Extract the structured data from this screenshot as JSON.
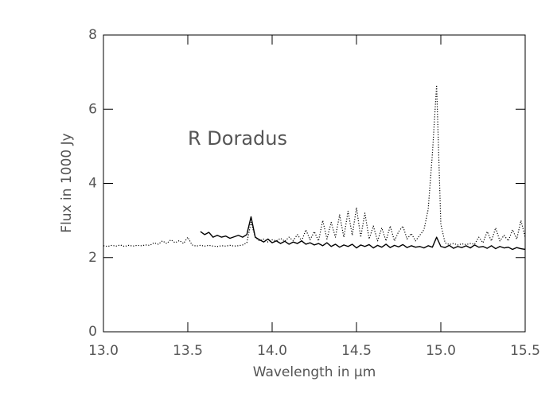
{
  "chart_data": {
    "type": "line",
    "annotation": "R Doradus",
    "xlabel": "Wavelength in μm",
    "ylabel": "Flux in 1000 Jy",
    "xlim": [
      13.0,
      15.5
    ],
    "ylim": [
      0,
      8
    ],
    "xticks": [
      {
        "value": 13,
        "label": "13.0"
      },
      13.5,
      {
        "value": 14,
        "label": "14.0"
      },
      14.5,
      {
        "value": 15,
        "label": "15.0"
      },
      15.5
    ],
    "yticks": [
      0,
      2,
      4,
      6,
      8
    ],
    "x": [
      13,
      13.025,
      13.05,
      13.075,
      13.1,
      13.125,
      13.15,
      13.175,
      13.2,
      13.225,
      13.25,
      13.275,
      13.3,
      13.325,
      13.35,
      13.375,
      13.4,
      13.425,
      13.45,
      13.475,
      13.5,
      13.525,
      13.55,
      13.575,
      13.6,
      13.625,
      13.65,
      13.675,
      13.7,
      13.725,
      13.75,
      13.775,
      13.8,
      13.825,
      13.85,
      13.875,
      13.9,
      13.925,
      13.95,
      13.975,
      14,
      14.025,
      14.05,
      14.075,
      14.1,
      14.125,
      14.15,
      14.175,
      14.2,
      14.225,
      14.25,
      14.275,
      14.3,
      14.325,
      14.35,
      14.375,
      14.4,
      14.425,
      14.45,
      14.475,
      14.5,
      14.525,
      14.55,
      14.575,
      14.6,
      14.625,
      14.65,
      14.675,
      14.7,
      14.725,
      14.75,
      14.775,
      14.8,
      14.825,
      14.85,
      14.875,
      14.9,
      14.925,
      14.95,
      14.975,
      15,
      15.025,
      15.05,
      15.075,
      15.1,
      15.125,
      15.15,
      15.175,
      15.2,
      15.225,
      15.25,
      15.275,
      15.3,
      15.325,
      15.35,
      15.375,
      15.4,
      15.425,
      15.45,
      15.475,
      15.5
    ],
    "series": [
      {
        "color": "#000000",
        "linestyle": "dotted",
        "values": [
          2.32,
          2.3,
          2.33,
          2.31,
          2.34,
          2.3,
          2.33,
          2.31,
          2.33,
          2.32,
          2.34,
          2.33,
          2.4,
          2.36,
          2.45,
          2.38,
          2.48,
          2.4,
          2.46,
          2.38,
          2.55,
          2.34,
          2.31,
          2.33,
          2.31,
          2.33,
          2.31,
          2.3,
          2.32,
          2.31,
          2.33,
          2.31,
          2.32,
          2.34,
          2.4,
          2.95,
          2.55,
          2.45,
          2.5,
          2.42,
          2.48,
          2.45,
          2.52,
          2.44,
          2.55,
          2.46,
          2.62,
          2.45,
          2.75,
          2.48,
          2.7,
          2.45,
          3.0,
          2.5,
          2.95,
          2.55,
          3.15,
          2.55,
          3.25,
          2.6,
          3.35,
          2.55,
          3.2,
          2.5,
          2.85,
          2.45,
          2.8,
          2.45,
          2.85,
          2.45,
          2.7,
          2.85,
          2.5,
          2.65,
          2.45,
          2.6,
          2.75,
          3.3,
          4.8,
          6.65,
          2.9,
          2.4,
          2.35,
          2.38,
          2.34,
          2.37,
          2.35,
          2.38,
          2.36,
          2.55,
          2.4,
          2.7,
          2.45,
          2.8,
          2.45,
          2.6,
          2.45,
          2.75,
          2.5,
          3.0,
          2.55
        ]
      },
      {
        "color": "#000000",
        "linestyle": "solid",
        "values": [
          null,
          null,
          null,
          null,
          null,
          null,
          null,
          null,
          null,
          null,
          null,
          null,
          null,
          null,
          null,
          null,
          null,
          null,
          null,
          null,
          null,
          null,
          null,
          2.7,
          2.62,
          2.68,
          2.55,
          2.6,
          2.55,
          2.58,
          2.52,
          2.56,
          2.6,
          2.55,
          2.62,
          3.1,
          2.55,
          2.48,
          2.42,
          2.5,
          2.4,
          2.45,
          2.38,
          2.44,
          2.36,
          2.42,
          2.38,
          2.45,
          2.36,
          2.4,
          2.34,
          2.38,
          2.32,
          2.4,
          2.3,
          2.36,
          2.28,
          2.34,
          2.3,
          2.36,
          2.26,
          2.34,
          2.3,
          2.35,
          2.26,
          2.33,
          2.28,
          2.36,
          2.27,
          2.33,
          2.29,
          2.35,
          2.27,
          2.32,
          2.28,
          2.3,
          2.26,
          2.32,
          2.28,
          2.55,
          2.3,
          2.27,
          2.33,
          2.25,
          2.3,
          2.27,
          2.32,
          2.26,
          2.34,
          2.28,
          2.3,
          2.25,
          2.32,
          2.24,
          2.3,
          2.26,
          2.28,
          2.22,
          2.27,
          2.24,
          2.22
        ]
      }
    ]
  }
}
